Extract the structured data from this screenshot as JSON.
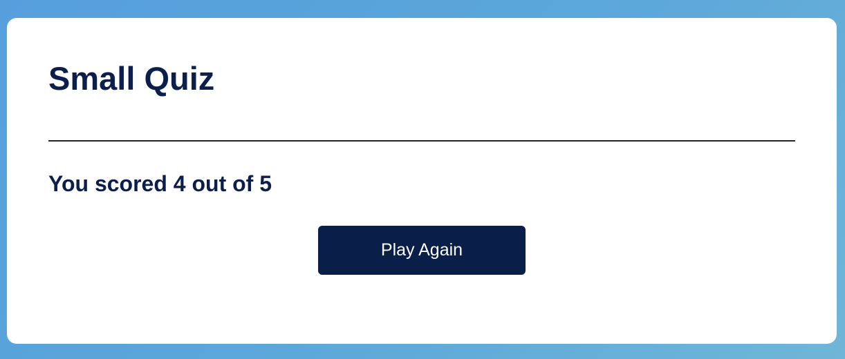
{
  "quiz": {
    "title": "Small Quiz",
    "score_text": "You scored 4 out of 5",
    "score": 4,
    "total": 5,
    "play_again_label": "Play Again"
  },
  "colors": {
    "background_gradient_start": "#569fdc",
    "background_gradient_end": "#6fb6d8",
    "card": "#ffffff",
    "text": "#0c1f4c",
    "button": "#0a1e4a",
    "button_text": "#ffffff"
  }
}
